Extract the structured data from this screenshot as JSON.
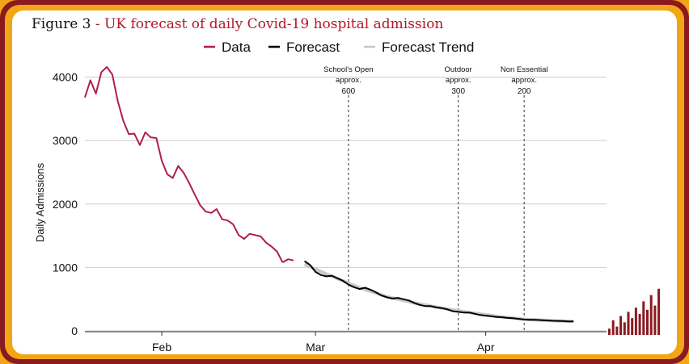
{
  "figure": {
    "label": "Figure 3",
    "separator": " - ",
    "title": "UK forecast of daily Covid-19 hospital admission"
  },
  "colors": {
    "data": "#b01e4a",
    "forecast": "#000000",
    "forecast_trend": "#c8c8c8",
    "frame_dark": "#8a1a20",
    "frame_amber": "#f2a516",
    "title_accent": "#b01828"
  },
  "chart_data": {
    "type": "line",
    "ylabel": "Daily Admissions",
    "xlabel": "",
    "ylim": [
      0,
      4300
    ],
    "yticks": [
      0,
      1000,
      2000,
      3000,
      4000
    ],
    "x_unit": "day",
    "x_start": "Jan 18",
    "xticks": [
      {
        "label": "Feb",
        "day": 14
      },
      {
        "label": "Mar",
        "day": 42
      },
      {
        "label": "Apr",
        "day": 73
      }
    ],
    "grid": true,
    "legend_position": "top",
    "legend": [
      "Data",
      "Forecast",
      "Forecast Trend"
    ],
    "series": [
      {
        "name": "Data",
        "x": [
          0,
          1,
          2,
          3,
          4,
          5,
          6,
          7,
          8,
          9,
          10,
          11,
          12,
          13,
          14,
          15,
          16,
          17,
          18,
          19,
          20,
          21,
          22,
          23,
          24,
          25,
          26,
          27,
          28,
          29,
          30,
          31,
          32,
          33,
          34,
          35,
          36
        ],
        "values": [
          3680,
          3950,
          3740,
          4080,
          4160,
          4040,
          3620,
          3310,
          3100,
          3110,
          2930,
          3130,
          3050,
          3040,
          2680,
          2470,
          2410,
          2600,
          2490,
          2330,
          2150,
          1980,
          1880,
          1860,
          1920,
          1760,
          1740,
          1680,
          1510,
          1450,
          1530,
          1510,
          1490,
          1390,
          1330,
          1250,
          1080
        ]
      },
      {
        "name": "Data (tail)",
        "x": [
          36,
          37,
          38
        ],
        "values": [
          1080,
          1130,
          1110
        ]
      },
      {
        "name": "Forecast",
        "x": [
          40,
          41,
          42,
          43,
          44,
          45,
          46,
          47,
          48,
          49,
          50,
          51,
          52,
          53,
          54,
          55,
          56,
          57,
          58,
          59,
          60,
          61,
          62,
          63,
          64,
          65,
          66,
          67,
          68,
          69,
          70,
          71,
          72,
          73,
          74,
          75,
          76,
          77,
          78,
          79,
          80,
          81,
          82,
          83,
          84,
          85,
          86,
          87,
          88,
          89
        ],
        "values": [
          1100,
          1040,
          930,
          880,
          860,
          870,
          830,
          790,
          730,
          690,
          660,
          680,
          650,
          610,
          560,
          530,
          510,
          520,
          500,
          480,
          440,
          410,
          390,
          390,
          370,
          360,
          340,
          310,
          300,
          290,
          290,
          270,
          250,
          240,
          230,
          220,
          215,
          205,
          200,
          190,
          180,
          175,
          175,
          170,
          165,
          160,
          158,
          155,
          150,
          150
        ]
      },
      {
        "name": "Forecast Trend",
        "x": [
          40,
          45,
          50,
          55,
          60,
          65,
          70,
          75,
          80,
          85,
          89
        ],
        "values": [
          1050,
          860,
          680,
          540,
          440,
          360,
          290,
          230,
          185,
          160,
          150
        ]
      }
    ],
    "annotations": [
      {
        "day": 48,
        "label_line1": "School's Open",
        "label_line2": "approx.",
        "value": "600"
      },
      {
        "day": 68,
        "label_line1": "Outdoor",
        "label_line2": "approx.",
        "value": "300"
      },
      {
        "day": 80,
        "label_line1": "Non Essential",
        "label_line2": "approx.",
        "value": "200"
      }
    ]
  },
  "logo_bars": [
    3,
    7,
    4,
    9,
    6,
    11,
    8,
    13,
    10,
    16,
    12,
    19,
    14,
    22
  ]
}
